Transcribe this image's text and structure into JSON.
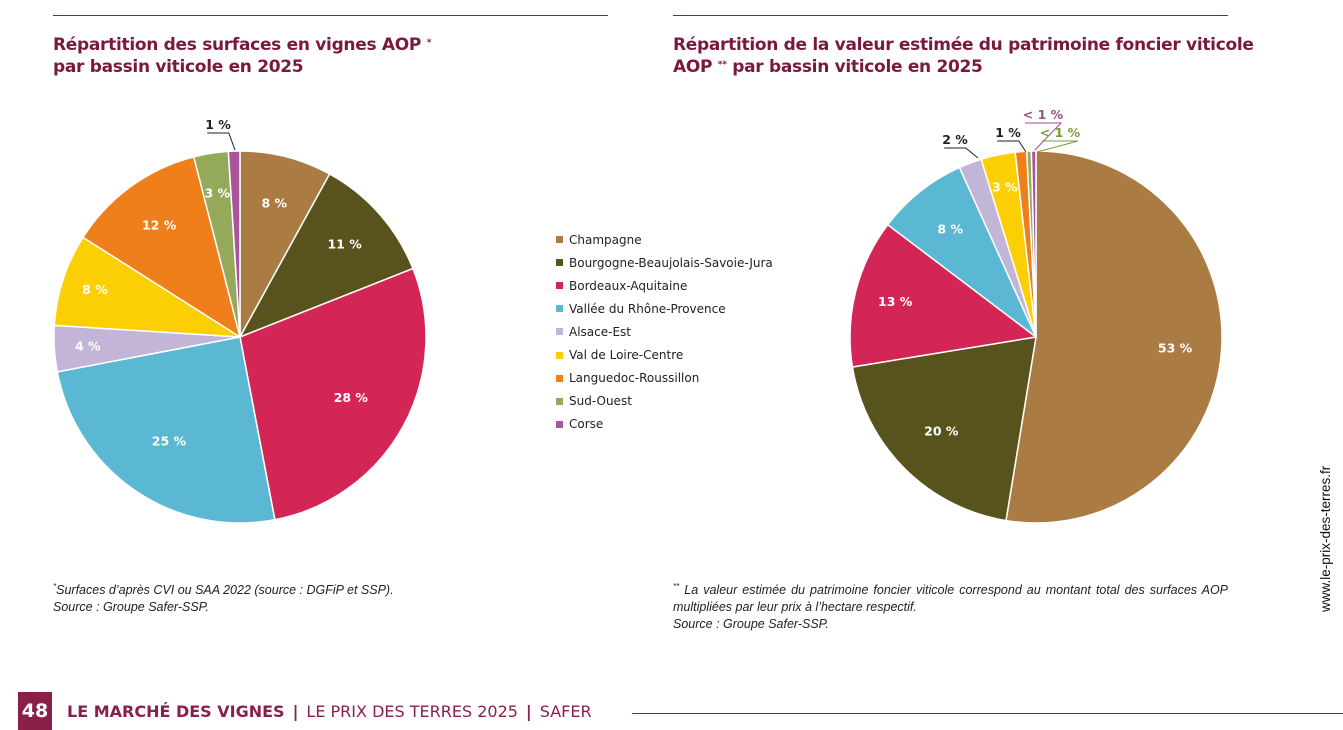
{
  "chart_data": [
    {
      "type": "pie",
      "title_line1": "Répartition des surfaces en vignes AOP",
      "title_mark": "*",
      "title_line2": "par bassin viticole en 2025",
      "categories": [
        "Champagne",
        "Bourgogne-Beaujolais-Savoie-Jura",
        "Bordeaux-Aquitaine",
        "Vallée du Rhône-Provence",
        "Alsace-Est",
        "Val de Loire-Centre",
        "Languedoc-Roussillon",
        "Sud-Ouest",
        "Corse"
      ],
      "values": [
        8,
        11,
        28,
        25,
        4,
        8,
        12,
        3,
        1
      ],
      "labels": [
        "8 %",
        "11 %",
        "28 %",
        "25 %",
        "4 %",
        "8 %",
        "12 %",
        "3 %",
        "1 %"
      ]
    },
    {
      "type": "pie",
      "title_line1": "Répartition de la valeur estimée du patrimoine foncier viticole",
      "title_line2_prefix": "AOP",
      "title_mark": "**",
      "title_line2": "par bassin viticole en 2025",
      "categories": [
        "Champagne",
        "Bourgogne-Beaujolais-Savoie-Jura",
        "Bordeaux-Aquitaine",
        "Vallée du Rhône-Provence",
        "Alsace-Est",
        "Val de Loire-Centre",
        "Languedoc-Roussillon",
        "Sud-Ouest",
        "Corse"
      ],
      "values": [
        53,
        20,
        13,
        8,
        2,
        3,
        1,
        0.4,
        0.4
      ],
      "labels": [
        "53 %",
        "20 %",
        "13 %",
        "8 %",
        "2 %",
        "3 %",
        "1 %",
        "< 1 %",
        "< 1 %"
      ]
    }
  ],
  "colors": [
    "#ab7b44",
    "#58531d",
    "#d42656",
    "#5ab8d3",
    "#c3b5d8",
    "#fccf04",
    "#ef7f1a",
    "#94aa5a",
    "#a8559c"
  ],
  "label_colors": {
    "purple": "#9b4e8f",
    "green": "#7e9a3c"
  },
  "legend": [
    "Champagne",
    "Bourgogne-Beaujolais-Savoie-Jura",
    "Bordeaux-Aquitaine",
    "Vallée du Rhône-Provence",
    "Alsace-Est",
    "Val de Loire-Centre",
    "Languedoc-Roussillon",
    "Sud-Ouest",
    "Corse"
  ],
  "notes": {
    "left_mark": "*",
    "left_line1": "Surfaces d’après CVI ou SAA 2022 (source : DGFiP et SSP).",
    "left_line2": "Source : Groupe Safer-SSP.",
    "right_mark": "**",
    "right_line1": "La valeur estimée du patrimoine foncier viticole correspond au montant total des surfaces AOP multipliées par leur prix à l’hectare respectif.",
    "right_line2": "Source : Groupe Safer-SSP."
  },
  "side_url": "www.le-prix-des-terres.fr",
  "footer": {
    "page_number": "48",
    "section": "LE MARCHÉ DES VIGNES",
    "separator": "|",
    "publication": "LE PRIX DES TERRES 2025",
    "org": "SAFER"
  }
}
